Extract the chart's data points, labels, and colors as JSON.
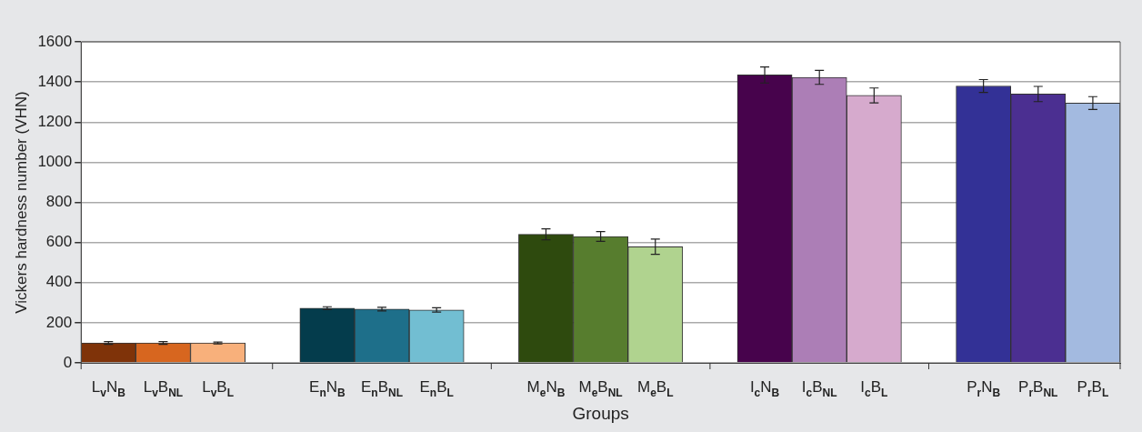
{
  "chart_data": {
    "type": "bar",
    "xlabel": "Groups",
    "ylabel": "Vickers hardness number (VHN)",
    "categories": [
      "L$_{v}$N$_{B}$",
      "L$_{v}$B$_{NL}$",
      "L$_{v}$B$_{L}$",
      null,
      "E$_{n}$N$_{B}$",
      "E$_{n}$B$_{NL}$",
      "E$_{n}$B$_{L}$",
      null,
      "M$_{e}$N$_{B}$",
      "M$_{e}$B$_{NL}$",
      "M$_{e}$B$_{L}$",
      null,
      "I$_{c}$N$_{B}$",
      "I$_{c}$B$_{NL}$",
      "I$_{c}$B$_{L}$",
      null,
      "P$_{r}$N$_{B}$",
      "P$_{r}$B$_{NL}$",
      "P$_{r}$B$_{L}$"
    ],
    "values": [
      99,
      99,
      99,
      null,
      273,
      268,
      264,
      null,
      641,
      630,
      579,
      null,
      1435,
      1423,
      1333,
      null,
      1380,
      1340,
      1295
    ],
    "errors": [
      7,
      7,
      5,
      null,
      7,
      9,
      11,
      null,
      27,
      24,
      38,
      null,
      40,
      35,
      37,
      null,
      32,
      38,
      32
    ],
    "colors": [
      "#7f3309",
      "#d7661f",
      "#f8b07b",
      null,
      "#043c4c",
      "#1e6f8a",
      "#72bed2",
      null,
      "#2e4a0e",
      "#577d2e",
      "#b0d38f",
      null,
      "#47034c",
      "#ac7eb6",
      "#d6aacd",
      null,
      "#333196",
      "#4b2f91",
      "#a3bae0"
    ],
    "ylim": [
      0,
      1600
    ],
    "yticks": [
      0,
      200,
      400,
      600,
      800,
      1000,
      1200,
      1400,
      1600
    ],
    "grid": "y",
    "legend": false
  }
}
